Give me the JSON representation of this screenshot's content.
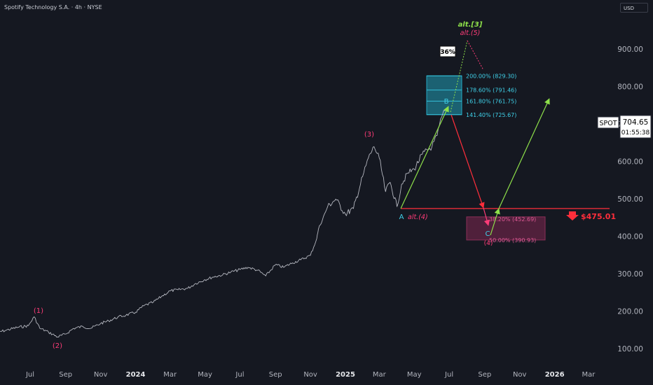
{
  "header": {
    "title": "Spotify Technology S.A. · 4h · NYSE",
    "currency": "USD"
  },
  "price_tag": {
    "symbol": "SPOT",
    "price": "704.65",
    "countdown": "01:55:38"
  },
  "stop_level": {
    "label": "$475.01",
    "value": 475.01,
    "color": "#ff2e3b"
  },
  "percent_badge": "36%",
  "chart_data": {
    "type": "line",
    "title": "Spotify Technology S.A. · 4h · NYSE",
    "ylabel": "",
    "ylim": [
      70,
      1010
    ],
    "y_ticks": [
      100,
      200,
      300,
      400,
      500,
      600,
      700,
      800,
      900
    ],
    "y_tick_labels": [
      "100.00",
      "200.00",
      "300.00",
      "400.00",
      "500.00",
      "600.00",
      "700.00",
      "800.00",
      "900.00"
    ],
    "x_ticks": [
      "Jul",
      "Sep",
      "Nov",
      "2024",
      "Mar",
      "May",
      "Jul",
      "Sep",
      "Nov",
      "2025",
      "Mar",
      "May",
      "Jul",
      "Sep",
      "Nov",
      "2026",
      "Mar"
    ],
    "x_tick_dates": [
      "2023-07-01",
      "2023-09-01",
      "2023-11-01",
      "2024-01-01",
      "2024-03-01",
      "2024-05-01",
      "2024-07-01",
      "2024-09-01",
      "2024-11-01",
      "2025-01-01",
      "2025-03-01",
      "2025-05-01",
      "2025-07-01",
      "2025-09-01",
      "2025-11-01",
      "2026-01-01",
      "2026-03-01"
    ],
    "series": [
      {
        "color": "#d1d4dc",
        "x": [
          "2023-05-01",
          "2023-05-20",
          "2023-06-10",
          "2023-06-28",
          "2023-07-08",
          "2023-07-18",
          "2023-08-02",
          "2023-08-18",
          "2023-09-01",
          "2023-09-15",
          "2023-10-01",
          "2023-10-15",
          "2023-11-01",
          "2023-11-15",
          "2023-12-01",
          "2023-12-15",
          "2024-01-01",
          "2024-01-15",
          "2024-02-01",
          "2024-02-15",
          "2024-03-01",
          "2024-03-15",
          "2024-04-01",
          "2024-04-15",
          "2024-05-01",
          "2024-05-15",
          "2024-06-01",
          "2024-06-15",
          "2024-07-01",
          "2024-07-15",
          "2024-08-01",
          "2024-08-15",
          "2024-09-01",
          "2024-09-15",
          "2024-10-01",
          "2024-10-15",
          "2024-11-01",
          "2024-11-12",
          "2024-11-15",
          "2024-12-01",
          "2024-12-15",
          "2025-01-01",
          "2025-01-15",
          "2025-01-31",
          "2025-02-10",
          "2025-02-20",
          "2025-03-01",
          "2025-03-12",
          "2025-03-20",
          "2025-04-01",
          "2025-04-09",
          "2025-04-20",
          "2025-05-01",
          "2025-05-15",
          "2025-06-01",
          "2025-06-10",
          "2025-06-18",
          "2025-06-25"
        ],
        "y": [
          143,
          150,
          158,
          162,
          186,
          155,
          145,
          132,
          140,
          155,
          160,
          155,
          168,
          175,
          185,
          190,
          198,
          215,
          225,
          240,
          255,
          258,
          262,
          275,
          285,
          292,
          298,
          305,
          312,
          318,
          310,
          295,
          325,
          318,
          330,
          338,
          350,
          395,
          420,
          480,
          500,
          460,
          475,
          560,
          610,
          640,
          610,
          520,
          545,
          480,
          540,
          570,
          580,
          620,
          640,
          670,
          720,
          740
        ]
      }
    ],
    "annotations": {
      "wave_labels": [
        "(1)",
        "(2)",
        "(3)",
        "(4)",
        "A",
        "B",
        "C",
        "alt.(4)",
        "alt.(5)",
        "alt.[3]"
      ],
      "target_box": {
        "levels": [
          "141.40% (725.67)",
          "161.80% (761.75)",
          "178.60% (791.46)",
          "200.00% (829.30)"
        ],
        "range": [
          725.67,
          829.3
        ]
      },
      "correction_box": {
        "levels": [
          "38.20% (452.69)",
          "50.00% (390.93)"
        ],
        "range": [
          390.93,
          452.69
        ]
      },
      "horizontal_line": 475.01
    }
  }
}
